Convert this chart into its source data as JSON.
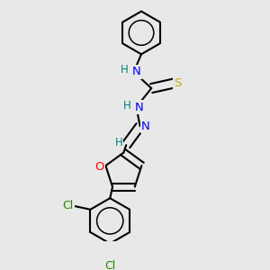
{
  "background_color": "#e8e8e8",
  "bond_color": "#000000",
  "atom_colors": {
    "N": "#0000ff",
    "H": "#008080",
    "S": "#ccaa00",
    "O": "#ff0000",
    "Cl": "#228800",
    "C": "#000000"
  },
  "figsize": [
    3.0,
    3.0
  ],
  "dpi": 100,
  "lw": 1.5,
  "double_sep": 0.018
}
